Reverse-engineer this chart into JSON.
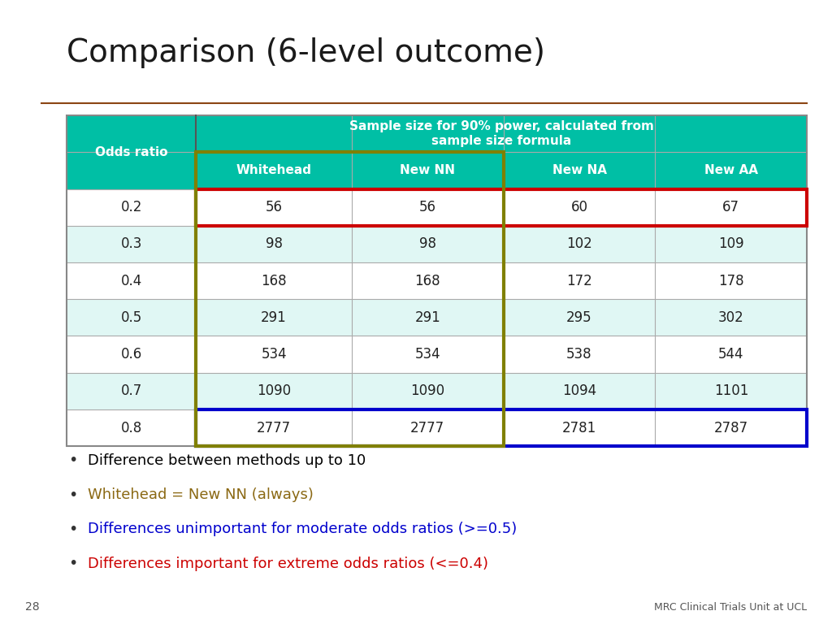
{
  "title": "Comparison (6-level outcome)",
  "title_fontsize": 28,
  "background_color": "#ffffff",
  "header_bg_color": "#00BFA5",
  "row_alt_color": "#e0f7f4",
  "row_white_color": "#ffffff",
  "col_header": [
    "Whitehead",
    "New NN",
    "New NA",
    "New AA"
  ],
  "row_labels": [
    "0.2",
    "0.3",
    "0.4",
    "0.5",
    "0.6",
    "0.7",
    "0.8"
  ],
  "table_data": [
    [
      "56",
      "56",
      "60",
      "67"
    ],
    [
      "98",
      "98",
      "102",
      "109"
    ],
    [
      "168",
      "168",
      "172",
      "178"
    ],
    [
      "291",
      "291",
      "295",
      "302"
    ],
    [
      "534",
      "534",
      "538",
      "544"
    ],
    [
      "1090",
      "1090",
      "1094",
      "1101"
    ],
    [
      "2777",
      "2777",
      "2781",
      "2787"
    ]
  ],
  "merged_header": "Sample size for 90% power, calculated from\nsample size formula",
  "odds_ratio_label": "Odds ratio",
  "separator_color": "#8B4513",
  "bullet_points": [
    {
      "text": "Difference between methods up to 10",
      "color": "#000000"
    },
    {
      "text": "Whitehead = New NN (always)",
      "color": "#8B6914"
    },
    {
      "text": "Differences unimportant for moderate odds ratios (>=0.5)",
      "color": "#0000CD"
    },
    {
      "text": "Differences important for extreme odds ratios (<=0.4)",
      "color": "#CC0000"
    }
  ],
  "footer_text": "MRC Clinical Trials Unit at UCL",
  "page_number": "28",
  "red_box_color": "#CC0000",
  "blue_box_color": "#0000CC",
  "olive_box_color": "#808000"
}
